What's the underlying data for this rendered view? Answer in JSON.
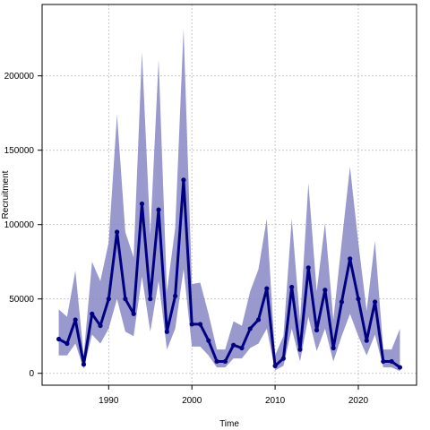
{
  "chart_data": {
    "type": "line",
    "title": "",
    "xlabel": "Time",
    "ylabel": "Recruitment",
    "xlim": [
      1982,
      2027
    ],
    "ylim": [
      -8000,
      248000
    ],
    "xticks": [
      1990,
      2000,
      2010,
      2020
    ],
    "yticks": [
      0,
      50000,
      100000,
      150000,
      200000
    ],
    "ytick_labels": [
      "0",
      "50000",
      "100000",
      "150000",
      "200000"
    ],
    "grid": true,
    "colors": {
      "line": "#000080",
      "band": "#8080c0"
    },
    "series": [
      {
        "type": "line",
        "x": [
          1984,
          1985,
          1986,
          1987,
          1988,
          1989,
          1990,
          1991,
          1992,
          1993,
          1994,
          1995,
          1996,
          1997,
          1998,
          1999,
          2000,
          2001,
          2002,
          2003,
          2004,
          2005,
          2006,
          2007,
          2008,
          2009,
          2010,
          2011,
          2012,
          2013,
          2014,
          2015,
          2016,
          2017,
          2018,
          2019,
          2020,
          2021,
          2022,
          2023,
          2024,
          2025
        ],
        "y": [
          23000,
          20000,
          36000,
          6000,
          40000,
          32000,
          50000,
          95000,
          50000,
          40000,
          114000,
          50000,
          110000,
          28000,
          52000,
          130000,
          33000,
          33000,
          22000,
          8000,
          8000,
          19000,
          17000,
          30000,
          36000,
          57000,
          5000,
          10000,
          58000,
          16000,
          71000,
          29000,
          56000,
          17000,
          48000,
          77000,
          50000,
          22000,
          48000,
          8000,
          8000,
          4000
        ]
      },
      {
        "type": "band",
        "x": [
          1984,
          1985,
          1986,
          1987,
          1988,
          1989,
          1990,
          1991,
          1992,
          1993,
          1994,
          1995,
          1996,
          1997,
          1998,
          1999,
          2000,
          2001,
          2002,
          2003,
          2004,
          2005,
          2006,
          2007,
          2008,
          2009,
          2010,
          2011,
          2012,
          2013,
          2014,
          2015,
          2016,
          2017,
          2018,
          2019,
          2020,
          2021,
          2022,
          2023,
          2024,
          2025
        ],
        "lower": [
          12000,
          12000,
          20000,
          3000,
          26000,
          20000,
          30000,
          50000,
          28000,
          25000,
          65000,
          28000,
          62000,
          16000,
          30000,
          70000,
          18000,
          18000,
          12000,
          4000,
          4000,
          10000,
          10000,
          17000,
          20000,
          30000,
          2000,
          5000,
          30000,
          8000,
          38000,
          15000,
          30000,
          8000,
          25000,
          40000,
          25000,
          12000,
          26000,
          4000,
          4000,
          1500
        ],
        "upper": [
          43000,
          38000,
          69000,
          12000,
          75000,
          62000,
          88000,
          174000,
          95000,
          78000,
          216000,
          93000,
          211000,
          55000,
          98000,
          232000,
          60000,
          61000,
          40000,
          16000,
          16000,
          35000,
          32000,
          55000,
          70000,
          104000,
          12000,
          25000,
          104000,
          35000,
          128000,
          55000,
          101000,
          36000,
          88000,
          139000,
          88000,
          42000,
          89000,
          16000,
          16000,
          30000
        ]
      }
    ]
  }
}
